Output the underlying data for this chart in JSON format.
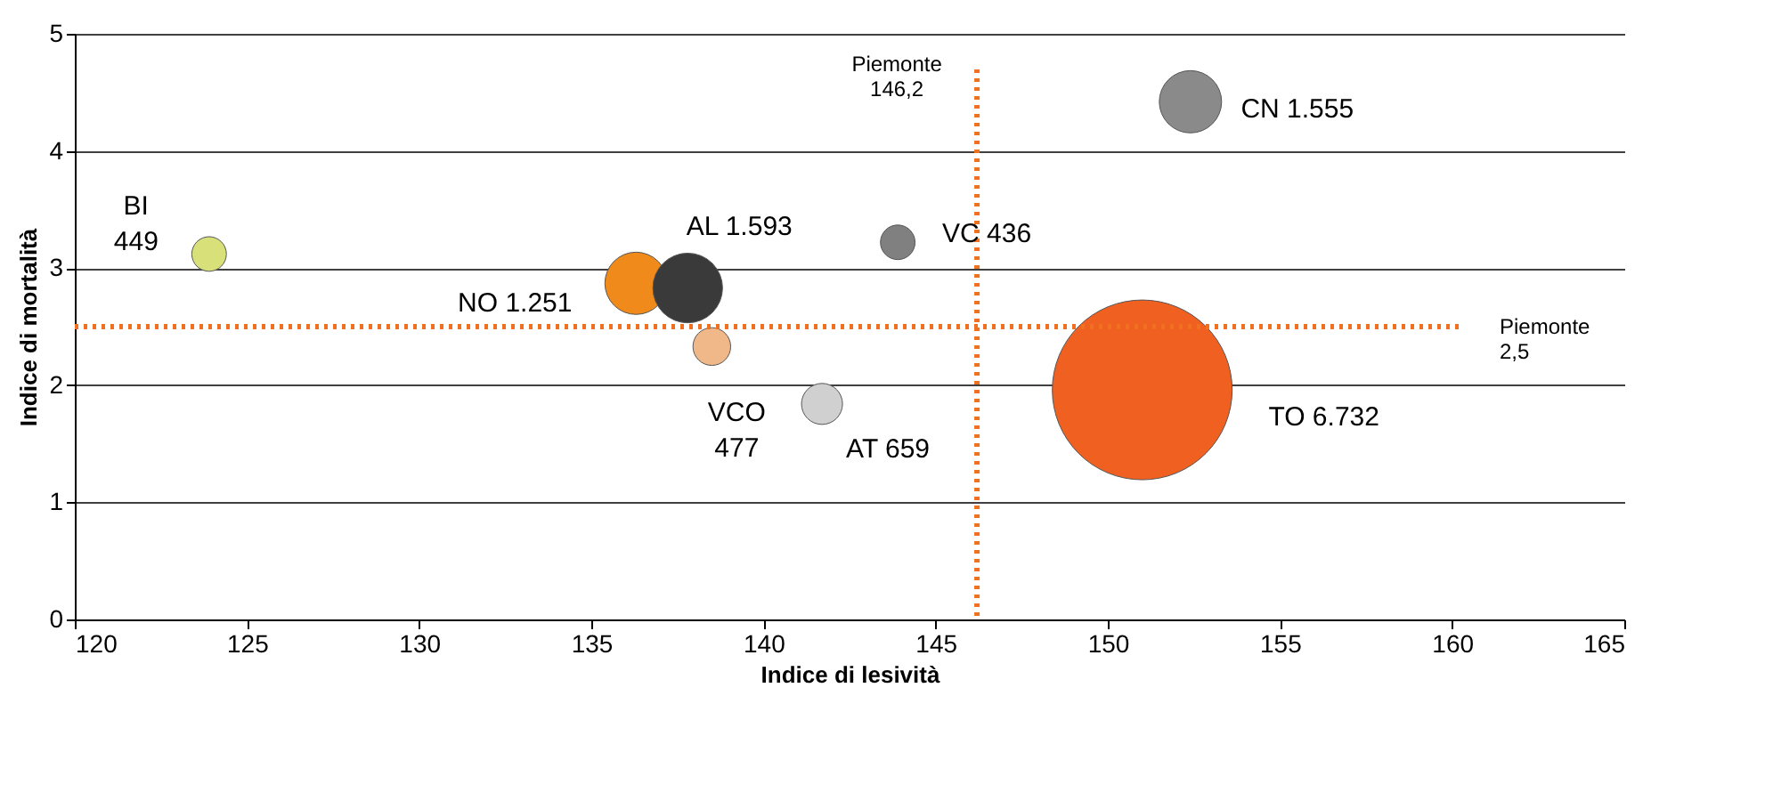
{
  "chart_data": {
    "type": "bubble",
    "xlabel": "Indice di lesività",
    "ylabel": "Indice di mortalità",
    "x": [
      123.9,
      136.3,
      137.8,
      138.5,
      143.9,
      141.7,
      152.4,
      151.0
    ],
    "values": [
      3.12,
      2.87,
      2.83,
      2.33,
      3.22,
      1.84,
      4.42,
      1.96
    ],
    "sizes": [
      0.037,
      0.12,
      0.15,
      0.044,
      0.037,
      0.052,
      0.12,
      1
    ],
    "colors": [
      "#d8e07a",
      "#f08a1a",
      "#3a3a3a",
      "#f0b888",
      "#808080",
      "#d0d0d0",
      "#8a8a8a",
      "#f06020"
    ],
    "value_labels": [
      "BI\n449",
      "NO 1.251",
      "AL 1.593",
      "VCO\n477",
      "VC 436",
      "AT 659",
      "CN 1.555",
      "TO 6.732"
    ],
    "xlim": [
      120,
      165
    ],
    "xticks": [
      120,
      125,
      130,
      135,
      140,
      145,
      150,
      155,
      160,
      165
    ],
    "ylim": [
      0,
      5
    ],
    "yticks": [
      0,
      1,
      2,
      3,
      4,
      5
    ],
    "grid": "y",
    "ref_lines": [
      {
        "axis": "x",
        "value": 146.2,
        "label": "Piemonte\n146,2",
        "color": "#f07020",
        "line_style": "dotted"
      },
      {
        "axis": "y",
        "value": 2.5,
        "label": "Piemonte\n2,5",
        "color": "#f07020",
        "line_style": "dotted"
      }
    ]
  }
}
